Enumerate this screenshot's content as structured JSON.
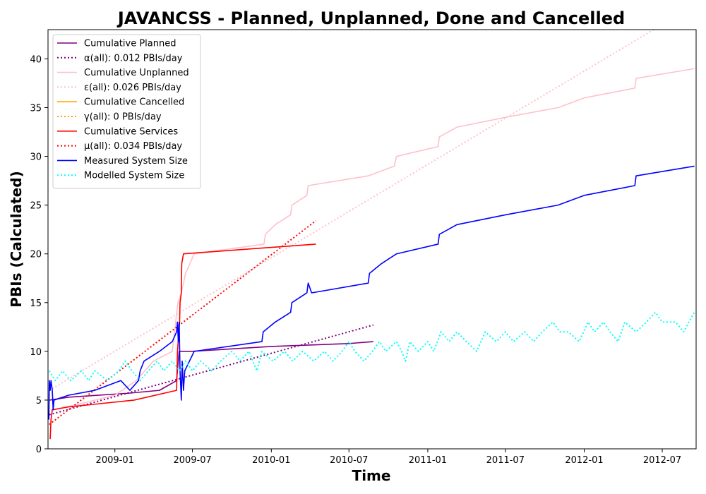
{
  "chart_data": {
    "type": "line",
    "title": "JAVANCSS - Planned, Unplanned, Done  and Cancelled",
    "xlabel": "Time",
    "ylabel": "PBIs (Calculated)",
    "xlim": [
      "2008-07-29",
      "2012-09-18"
    ],
    "ylim": [
      0,
      43
    ],
    "x_ticks": [
      {
        "date": "2009-01-01",
        "label": "2009-01"
      },
      {
        "date": "2009-07-01",
        "label": "2009-07"
      },
      {
        "date": "2010-01-01",
        "label": "2010-01"
      },
      {
        "date": "2010-07-01",
        "label": "2010-07"
      },
      {
        "date": "2011-01-01",
        "label": "2011-01"
      },
      {
        "date": "2011-07-01",
        "label": "2011-07"
      },
      {
        "date": "2012-01-01",
        "label": "2012-01"
      },
      {
        "date": "2012-07-01",
        "label": "2012-07"
      }
    ],
    "y_ticks": [
      0,
      5,
      10,
      15,
      20,
      25,
      30,
      35,
      40
    ],
    "grid": false,
    "legend_position": "top-left",
    "series": [
      {
        "name": "Cumulative Planned",
        "color": "#800080",
        "style": "solid",
        "points": [
          [
            "2008-08-02",
            5
          ],
          [
            "2008-09-15",
            5.3
          ],
          [
            "2009-02-01",
            5.7
          ],
          [
            "2009-04-15",
            6
          ],
          [
            "2009-05-25",
            7
          ],
          [
            "2009-05-31",
            10
          ],
          [
            "2009-06-05",
            10
          ],
          [
            "2009-07-01",
            10
          ],
          [
            "2010-01-01",
            10.5
          ],
          [
            "2010-07-01",
            10.8
          ],
          [
            "2010-08-27",
            11
          ]
        ]
      },
      {
        "name": "α(all): 0.012 PBIs/day",
        "color": "#800080",
        "style": "dotted",
        "points": [
          [
            "2008-08-01",
            3.5
          ],
          [
            "2010-08-27",
            12.7
          ]
        ]
      },
      {
        "name": "Cumulative Unplanned",
        "color": "#ffc0cb",
        "style": "solid",
        "points": [
          [
            "2008-08-05",
            4
          ],
          [
            "2008-10-01",
            4.5
          ],
          [
            "2009-01-01",
            5.5
          ],
          [
            "2009-02-20",
            7
          ],
          [
            "2009-04-01",
            9
          ],
          [
            "2009-05-15",
            10
          ],
          [
            "2009-05-28",
            15
          ],
          [
            "2009-06-05",
            16
          ],
          [
            "2009-06-15",
            18
          ],
          [
            "2009-07-05",
            20
          ],
          [
            "2009-12-15",
            21
          ],
          [
            "2009-12-18",
            22
          ],
          [
            "2010-01-10",
            23
          ],
          [
            "2010-02-15",
            24
          ],
          [
            "2010-02-18",
            25
          ],
          [
            "2010-03-25",
            26
          ],
          [
            "2010-03-28",
            27
          ],
          [
            "2010-08-15",
            28
          ],
          [
            "2010-10-15",
            29
          ],
          [
            "2010-10-20",
            30
          ],
          [
            "2011-01-25",
            31
          ],
          [
            "2011-01-28",
            32
          ],
          [
            "2011-03-10",
            33
          ],
          [
            "2011-07-01",
            34
          ],
          [
            "2011-11-01",
            35
          ],
          [
            "2012-01-01",
            36
          ],
          [
            "2012-04-28",
            37
          ],
          [
            "2012-05-01",
            38
          ],
          [
            "2012-09-14",
            39
          ]
        ]
      },
      {
        "name": "ε(all): 0.026 PBIs/day",
        "color": "#ffc0cb",
        "style": "dotted",
        "points": [
          [
            "2008-08-01",
            6
          ],
          [
            "2012-09-14",
            45.5
          ]
        ]
      },
      {
        "name": "Cumulative Cancelled",
        "color": "#ffa500",
        "style": "solid",
        "points": []
      },
      {
        "name": "γ(all): 0 PBIs/day",
        "color": "#ffa500",
        "style": "dotted",
        "points": []
      },
      {
        "name": "Cumulative Services",
        "color": "#ff0000",
        "style": "solid",
        "points": [
          [
            "2008-08-03",
            1
          ],
          [
            "2008-08-05",
            3
          ],
          [
            "2008-08-08",
            4
          ],
          [
            "2008-09-15",
            4.3
          ],
          [
            "2009-02-15",
            5
          ],
          [
            "2009-05-25",
            6
          ],
          [
            "2009-05-27",
            10
          ],
          [
            "2009-06-01",
            13
          ],
          [
            "2009-06-02",
            15
          ],
          [
            "2009-06-05",
            16
          ],
          [
            "2009-06-06",
            19
          ],
          [
            "2009-06-10",
            20
          ],
          [
            "2010-04-15",
            21
          ]
        ]
      },
      {
        "name": "μ(all): 0.034 PBIs/day",
        "color": "#ff0000",
        "style": "dotted",
        "points": [
          [
            "2008-08-01",
            2.5
          ],
          [
            "2010-04-15",
            23.4
          ]
        ]
      },
      {
        "name": "Measured System Size",
        "color": "#0000ff",
        "style": "solid",
        "points": [
          [
            "2008-07-31",
            3
          ],
          [
            "2008-08-01",
            7
          ],
          [
            "2008-08-03",
            6
          ],
          [
            "2008-08-05",
            7
          ],
          [
            "2008-08-08",
            6
          ],
          [
            "2008-08-10",
            4
          ],
          [
            "2008-08-12",
            5
          ],
          [
            "2008-09-15",
            5.5
          ],
          [
            "2008-11-15",
            6
          ],
          [
            "2009-01-15",
            7
          ],
          [
            "2009-02-05",
            6
          ],
          [
            "2009-02-25",
            7
          ],
          [
            "2009-03-01",
            8
          ],
          [
            "2009-03-10",
            9
          ],
          [
            "2009-04-15",
            10
          ],
          [
            "2009-05-15",
            11
          ],
          [
            "2009-05-25",
            12
          ],
          [
            "2009-05-27",
            13
          ],
          [
            "2009-05-29",
            11
          ],
          [
            "2009-05-31",
            13
          ],
          [
            "2009-06-02",
            8
          ],
          [
            "2009-06-05",
            5
          ],
          [
            "2009-06-07",
            9
          ],
          [
            "2009-06-10",
            6
          ],
          [
            "2009-06-13",
            8
          ],
          [
            "2009-07-05",
            10
          ],
          [
            "2009-12-10",
            11
          ],
          [
            "2009-12-13",
            12
          ],
          [
            "2010-01-10",
            13
          ],
          [
            "2010-02-15",
            14
          ],
          [
            "2010-02-18",
            15
          ],
          [
            "2010-03-25",
            16
          ],
          [
            "2010-03-28",
            17
          ],
          [
            "2010-04-05",
            16
          ],
          [
            "2010-08-15",
            17
          ],
          [
            "2010-08-18",
            18
          ],
          [
            "2010-09-15",
            19
          ],
          [
            "2010-10-20",
            20
          ],
          [
            "2011-01-25",
            21
          ],
          [
            "2011-01-28",
            22
          ],
          [
            "2011-03-10",
            23
          ],
          [
            "2011-07-01",
            24
          ],
          [
            "2011-11-01",
            25
          ],
          [
            "2012-01-01",
            26
          ],
          [
            "2012-04-28",
            27
          ],
          [
            "2012-05-01",
            28
          ],
          [
            "2012-09-14",
            29
          ]
        ]
      },
      {
        "name": "Modelled System Size",
        "color": "#00ffff",
        "style": "dotted",
        "points": [
          [
            "2008-08-01",
            8
          ],
          [
            "2008-08-15",
            7
          ],
          [
            "2008-09-01",
            8
          ],
          [
            "2008-09-20",
            7
          ],
          [
            "2008-10-15",
            8
          ],
          [
            "2008-11-01",
            7
          ],
          [
            "2008-11-15",
            8
          ],
          [
            "2008-12-15",
            7
          ],
          [
            "2009-01-10",
            8
          ],
          [
            "2009-01-25",
            9
          ],
          [
            "2009-02-10",
            8
          ],
          [
            "2009-03-01",
            7
          ],
          [
            "2009-03-20",
            8
          ],
          [
            "2009-04-10",
            9
          ],
          [
            "2009-04-25",
            8
          ],
          [
            "2009-05-15",
            9
          ],
          [
            "2009-06-01",
            8
          ],
          [
            "2009-06-15",
            9
          ],
          [
            "2009-07-01",
            8
          ],
          [
            "2009-07-20",
            9
          ],
          [
            "2009-08-15",
            8
          ],
          [
            "2009-09-05",
            9
          ],
          [
            "2009-10-01",
            10
          ],
          [
            "2009-10-20",
            9
          ],
          [
            "2009-11-10",
            10
          ],
          [
            "2009-11-28",
            8
          ],
          [
            "2009-12-10",
            10
          ],
          [
            "2010-01-05",
            9
          ],
          [
            "2010-02-01",
            10
          ],
          [
            "2010-02-20",
            9
          ],
          [
            "2010-03-15",
            10
          ],
          [
            "2010-04-10",
            9
          ],
          [
            "2010-05-05",
            10
          ],
          [
            "2010-05-25",
            9
          ],
          [
            "2010-06-15",
            10
          ],
          [
            "2010-07-01",
            11
          ],
          [
            "2010-07-15",
            10
          ],
          [
            "2010-08-05",
            9
          ],
          [
            "2010-08-25",
            10
          ],
          [
            "2010-09-10",
            11
          ],
          [
            "2010-09-25",
            10
          ],
          [
            "2010-10-20",
            11
          ],
          [
            "2010-11-01",
            10
          ],
          [
            "2010-11-10",
            9
          ],
          [
            "2010-11-20",
            11
          ],
          [
            "2010-12-10",
            10
          ],
          [
            "2011-01-01",
            11
          ],
          [
            "2011-01-15",
            10
          ],
          [
            "2011-02-01",
            12
          ],
          [
            "2011-02-20",
            11
          ],
          [
            "2011-03-10",
            12
          ],
          [
            "2011-04-01",
            11
          ],
          [
            "2011-04-25",
            10
          ],
          [
            "2011-05-15",
            12
          ],
          [
            "2011-06-10",
            11
          ],
          [
            "2011-07-01",
            12
          ],
          [
            "2011-07-20",
            11
          ],
          [
            "2011-08-15",
            12
          ],
          [
            "2011-09-05",
            11
          ],
          [
            "2011-09-25",
            12
          ],
          [
            "2011-10-20",
            13
          ],
          [
            "2011-11-05",
            12
          ],
          [
            "2011-11-25",
            12
          ],
          [
            "2011-12-20",
            11
          ],
          [
            "2012-01-10",
            13
          ],
          [
            "2012-01-25",
            12
          ],
          [
            "2012-02-15",
            13
          ],
          [
            "2012-03-01",
            12
          ],
          [
            "2012-03-20",
            11
          ],
          [
            "2012-04-05",
            13
          ],
          [
            "2012-05-01",
            12
          ],
          [
            "2012-05-25",
            13
          ],
          [
            "2012-06-15",
            14
          ],
          [
            "2012-07-01",
            13
          ],
          [
            "2012-08-01",
            13
          ],
          [
            "2012-08-20",
            12
          ],
          [
            "2012-09-01",
            13
          ],
          [
            "2012-09-14",
            14
          ]
        ]
      }
    ]
  }
}
